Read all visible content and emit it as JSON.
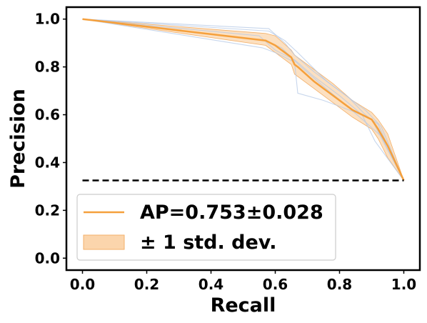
{
  "chart_data": {
    "type": "line",
    "xlabel": "Recall",
    "ylabel": "Precision",
    "xlim": [
      -0.05,
      1.05
    ],
    "ylim": [
      -0.05,
      1.05
    ],
    "xticks": [
      0.0,
      0.2,
      0.4,
      0.6,
      0.8,
      1.0
    ],
    "xtick_labels": [
      "0.0",
      "0.2",
      "0.4",
      "0.6",
      "0.8",
      "1.0"
    ],
    "yticks": [
      0.0,
      0.2,
      0.4,
      0.6,
      0.8,
      1.0
    ],
    "ytick_labels": [
      "0.0",
      "0.2",
      "0.4",
      "0.6",
      "0.8",
      "1.0"
    ],
    "grid": false,
    "legend_position": "lower-left",
    "mean_curve": {
      "name": "AP=0.753±0.028",
      "color": "#f5a03c",
      "x": [
        0.0,
        0.57,
        0.6,
        0.65,
        0.66,
        0.67,
        0.72,
        0.78,
        0.84,
        0.9,
        0.92,
        0.95,
        1.0
      ],
      "y": [
        1.0,
        0.91,
        0.89,
        0.84,
        0.81,
        0.8,
        0.74,
        0.68,
        0.62,
        0.58,
        0.54,
        0.47,
        0.325
      ]
    },
    "std_band": {
      "name": "± 1 std. dev.",
      "color": "#fbd5ac",
      "x": [
        0.0,
        0.57,
        0.6,
        0.65,
        0.66,
        0.67,
        0.72,
        0.78,
        0.84,
        0.9,
        0.92,
        0.95,
        1.0
      ],
      "upper": [
        1.0,
        0.94,
        0.93,
        0.87,
        0.85,
        0.84,
        0.79,
        0.73,
        0.66,
        0.61,
        0.58,
        0.52,
        0.325
      ],
      "lower": [
        1.0,
        0.89,
        0.86,
        0.81,
        0.77,
        0.76,
        0.71,
        0.65,
        0.59,
        0.54,
        0.5,
        0.42,
        0.325
      ]
    },
    "fold_curves": {
      "color": "#b4c8e6",
      "series": [
        {
          "x": [
            0.0,
            0.58,
            0.63,
            0.66,
            0.72,
            0.8,
            0.88,
            0.93,
            1.0
          ],
          "y": [
            1.0,
            0.96,
            0.9,
            0.85,
            0.78,
            0.7,
            0.62,
            0.55,
            0.325
          ]
        },
        {
          "x": [
            0.0,
            0.56,
            0.6,
            0.66,
            0.67,
            0.75,
            0.85,
            0.9,
            1.0
          ],
          "y": [
            1.0,
            0.88,
            0.86,
            0.82,
            0.69,
            0.66,
            0.61,
            0.58,
            0.325
          ]
        },
        {
          "x": [
            0.0,
            0.55,
            0.6,
            0.66,
            0.72,
            0.8,
            0.87,
            0.91,
            1.0
          ],
          "y": [
            1.0,
            0.93,
            0.87,
            0.83,
            0.76,
            0.68,
            0.6,
            0.49,
            0.325
          ]
        },
        {
          "x": [
            0.0,
            0.57,
            0.62,
            0.68,
            0.74,
            0.82,
            0.88,
            0.93,
            1.0
          ],
          "y": [
            1.0,
            0.91,
            0.88,
            0.8,
            0.73,
            0.64,
            0.57,
            0.51,
            0.325
          ]
        },
        {
          "x": [
            0.0,
            0.58,
            0.63,
            0.67,
            0.76,
            0.83,
            0.88,
            0.92,
            1.0
          ],
          "y": [
            1.0,
            0.95,
            0.91,
            0.86,
            0.74,
            0.67,
            0.6,
            0.56,
            0.325
          ]
        }
      ]
    },
    "baseline": {
      "y": 0.325,
      "x": [
        0.0,
        1.0
      ],
      "color": "#000000",
      "style": "dashed"
    },
    "legend": [
      {
        "label": "AP=0.753±0.028",
        "kind": "line"
      },
      {
        "label": "± 1 std. dev.",
        "kind": "patch"
      }
    ]
  }
}
